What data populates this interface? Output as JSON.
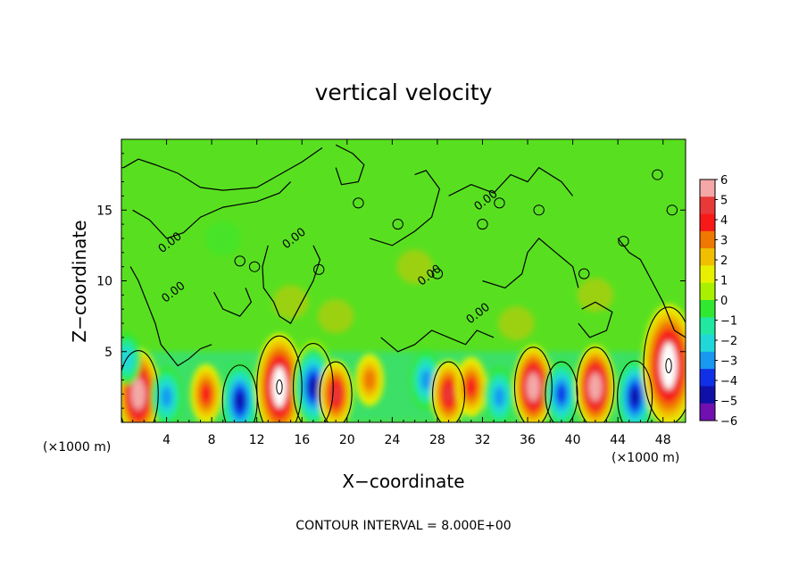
{
  "chart_data": {
    "type": "heatmap",
    "title": "vertical velocity",
    "xlabel": "X−coordinate",
    "ylabel": "Z−coordinate",
    "x_unit_label": "(×1000 m)",
    "y_unit_label": "(×1000 m)",
    "xlim": [
      0,
      50
    ],
    "ylim": [
      0,
      20
    ],
    "x_ticks": [
      4,
      8,
      12,
      16,
      20,
      24,
      28,
      32,
      36,
      40,
      44,
      48
    ],
    "x_tick_labels": [
      "4",
      "8",
      "12",
      "16",
      "20",
      "24",
      "28",
      "32",
      "36",
      "40",
      "44",
      "48"
    ],
    "y_ticks": [
      5,
      10,
      15
    ],
    "y_tick_labels": [
      "5",
      "10",
      "15"
    ],
    "contour_labels": [
      "0.00",
      "0.00",
      "0.00",
      "0.00",
      "0.00",
      "0.00"
    ],
    "colorbar": {
      "ticks": [
        6,
        5,
        4,
        3,
        2,
        1,
        0,
        -1,
        -2,
        -3,
        -4,
        -5,
        -6
      ],
      "tick_labels": [
        "6",
        "5",
        "4",
        "3",
        "2",
        "1",
        "0",
        "−1",
        "−2",
        "−3",
        "−4",
        "−5",
        "−6"
      ],
      "colors": [
        "#f4a8a8",
        "#e83838",
        "#f81818",
        "#f07800",
        "#f0c000",
        "#e8f000",
        "#a8f000",
        "#30e830",
        "#20e8a0",
        "#20d8d8",
        "#1898f0",
        "#1030e8",
        "#1010a8",
        "#7010b0"
      ]
    },
    "features": [
      {
        "x": 1.5,
        "z": 2.0,
        "w": 8,
        "kind": "updraft"
      },
      {
        "x": 4.0,
        "z": 1.8,
        "w": -4,
        "kind": "downdraft"
      },
      {
        "x": 7.5,
        "z": 2.0,
        "w": 4,
        "kind": "updraft"
      },
      {
        "x": 10.5,
        "z": 1.5,
        "w": -6,
        "kind": "downdraft"
      },
      {
        "x": 14.0,
        "z": 2.5,
        "w": 10,
        "kind": "updraft"
      },
      {
        "x": 17.0,
        "z": 2.5,
        "w": -8,
        "kind": "downdraft"
      },
      {
        "x": 19.0,
        "z": 2.0,
        "w": 5,
        "kind": "updraft"
      },
      {
        "x": 22.0,
        "z": 3.0,
        "w": 3,
        "kind": "updraft"
      },
      {
        "x": 27.0,
        "z": 3.0,
        "w": -4,
        "kind": "downdraft"
      },
      {
        "x": 29.0,
        "z": 2.0,
        "w": 5,
        "kind": "updraft"
      },
      {
        "x": 31.0,
        "z": 2.5,
        "w": 4,
        "kind": "updraft"
      },
      {
        "x": 33.5,
        "z": 1.8,
        "w": -4,
        "kind": "downdraft"
      },
      {
        "x": 36.5,
        "z": 2.5,
        "w": 7,
        "kind": "updraft"
      },
      {
        "x": 39.0,
        "z": 2.0,
        "w": -5,
        "kind": "downdraft"
      },
      {
        "x": 42.0,
        "z": 2.5,
        "w": 7,
        "kind": "updraft"
      },
      {
        "x": 45.5,
        "z": 1.8,
        "w": -6,
        "kind": "downdraft"
      },
      {
        "x": 48.5,
        "z": 4.0,
        "w": 12,
        "kind": "updraft"
      },
      {
        "x": 0.5,
        "z": 4.5,
        "w": -3,
        "kind": "downdraft"
      }
    ],
    "footer": "CONTOUR INTERVAL = 8.000E+00"
  }
}
